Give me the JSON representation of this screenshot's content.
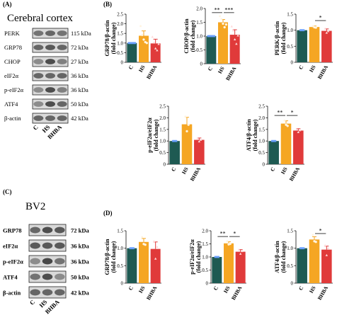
{
  "colors": {
    "C": "#1e5a52",
    "HS": "#f5a623",
    "BHBA": "#e03a3a",
    "axis": "#111111"
  },
  "panels": {
    "A": {
      "letter": "(A)",
      "title": "Cerebral cortex",
      "rows": [
        {
          "protein": "PERK",
          "size": "115 kDa",
          "tone": [
            0.55,
            0.6,
            0.55
          ]
        },
        {
          "protein": "GRP78",
          "size": "72 kDa",
          "tone": [
            0.6,
            0.65,
            0.6
          ]
        },
        {
          "protein": "CHOP",
          "size": "27 kDa",
          "tone": [
            0.45,
            0.7,
            0.5
          ]
        },
        {
          "protein": "eIF2α",
          "size": "36 kDa",
          "tone": [
            0.6,
            0.6,
            0.6
          ]
        },
        {
          "protein": "p-eIF2α",
          "size": "36 kDa",
          "tone": [
            0.45,
            0.7,
            0.5
          ]
        },
        {
          "protein": "ATF4",
          "size": "50 kDa",
          "tone": [
            0.45,
            0.7,
            0.6
          ]
        },
        {
          "protein": "β-actin",
          "size": "42 kDa",
          "tone": [
            0.6,
            0.6,
            0.6
          ]
        }
      ],
      "lanes": [
        "C",
        "HS",
        "BHBA"
      ]
    },
    "C": {
      "letter": "(C)",
      "title": "BV2",
      "rows": [
        {
          "protein": "GRP78",
          "size": "72 kDa",
          "tone": [
            0.6,
            0.7,
            0.65
          ]
        },
        {
          "protein": "eIF2α",
          "size": "36 kDa",
          "tone": [
            0.65,
            0.65,
            0.65
          ]
        },
        {
          "protein": "p-eIF2α",
          "size": "36 kDa",
          "tone": [
            0.45,
            0.72,
            0.55
          ]
        },
        {
          "protein": "ATF4",
          "size": "50 kDa",
          "tone": [
            0.55,
            0.7,
            0.45
          ]
        },
        {
          "protein": "β-actin",
          "size": "42 kDa",
          "tone": [
            0.6,
            0.6,
            0.6
          ]
        }
      ],
      "lanes": [
        "C",
        "HS",
        "BHBA"
      ]
    },
    "B_letter": "(B)",
    "D_letter": "(D)"
  },
  "chart_data": [
    {
      "id": "B1",
      "type": "bar",
      "categories": [
        "C",
        "HS",
        "BHBA"
      ],
      "values": [
        1.0,
        1.38,
        0.98
      ],
      "errors": [
        0.02,
        0.25,
        0.22
      ],
      "points": [
        [
          1,
          1,
          1,
          1,
          1
        ],
        [
          1.88,
          1.42,
          1.18,
          1.05,
          1.0
        ],
        [
          1.32,
          1.02,
          0.72,
          0.62,
          0.95
        ]
      ],
      "ylabel": [
        "GRP78/β-actin",
        "(fold change)"
      ],
      "ylim": [
        0,
        2.5
      ],
      "yticks": [
        0,
        0.5,
        1.0,
        1.5,
        2.0,
        2.5
      ],
      "sig": []
    },
    {
      "id": "B2",
      "type": "bar",
      "categories": [
        "C",
        "HS",
        "BHBA"
      ],
      "values": [
        1.0,
        1.5,
        1.05
      ],
      "errors": [
        0.02,
        0.1,
        0.18
      ],
      "points": [
        [
          1,
          1,
          1,
          1,
          1
        ],
        [
          1.72,
          1.62,
          1.45,
          1.32,
          1.42
        ],
        [
          1.35,
          1.2,
          0.88,
          0.72,
          1.02
        ]
      ],
      "ylabel": [
        "CHOP/β-actin",
        "(fold change)"
      ],
      "ylim": [
        0,
        2.0
      ],
      "yticks": [
        0,
        0.5,
        1.0,
        1.5,
        2.0
      ],
      "sig": [
        {
          "from": 0,
          "to": 1,
          "label": "**",
          "y": 1.85
        },
        {
          "from": 1,
          "to": 2,
          "label": "***",
          "y": 1.85
        }
      ]
    },
    {
      "id": "B3",
      "type": "bar",
      "categories": [
        "C",
        "HS",
        "BHBA"
      ],
      "values": [
        1.0,
        1.1,
        0.98
      ],
      "errors": [
        0.01,
        0.03,
        0.06
      ],
      "points": [
        [
          1,
          1,
          1
        ],
        [
          1.13,
          1.09,
          1.08
        ],
        [
          1.05,
          0.92,
          0.97
        ]
      ],
      "ylabel": [
        "PERK/β-actin",
        "(fold change)"
      ],
      "ylim": [
        0,
        1.5
      ],
      "yticks": [
        0,
        0.5,
        1.0,
        1.5
      ],
      "sig": [
        {
          "from": 1,
          "to": 2,
          "label": "*",
          "y": 1.3
        }
      ]
    },
    {
      "id": "B4",
      "type": "bar",
      "categories": [
        "C",
        "HS",
        "BHBA"
      ],
      "values": [
        1.0,
        1.72,
        1.05
      ],
      "errors": [
        0.01,
        0.3,
        0.08
      ],
      "points": [
        [
          1,
          1,
          1
        ],
        [
          2.05,
          1.42,
          1.7
        ],
        [
          1.12,
          0.98,
          1.05
        ]
      ],
      "ylabel": [
        "p-eIF2α/eIF2α",
        "(fold change)"
      ],
      "ylim": [
        0,
        2.5
      ],
      "yticks": [
        0,
        0.5,
        1.0,
        1.5,
        2.0,
        2.5
      ],
      "sig": []
    },
    {
      "id": "B5",
      "type": "bar",
      "categories": [
        "C",
        "HS",
        "BHBA"
      ],
      "values": [
        1.0,
        1.75,
        1.45
      ],
      "errors": [
        0.01,
        0.12,
        0.08
      ],
      "points": [
        [
          1,
          1,
          1
        ],
        [
          1.88,
          1.7,
          1.65
        ],
        [
          1.5,
          1.38,
          1.46
        ]
      ],
      "ylabel": [
        "ATF4/β-actin",
        "(fold change)"
      ],
      "ylim": [
        0,
        2.5
      ],
      "yticks": [
        0,
        0.5,
        1.0,
        1.5,
        2.0,
        2.5
      ],
      "sig": [
        {
          "from": 0,
          "to": 1,
          "label": "**",
          "y": 2.1
        },
        {
          "from": 1,
          "to": 2,
          "label": "*",
          "y": 2.1
        }
      ]
    },
    {
      "id": "D1",
      "type": "bar",
      "categories": [
        "C",
        "HS",
        "BHBA"
      ],
      "values": [
        1.0,
        1.18,
        0.98
      ],
      "errors": [
        0.01,
        0.1,
        0.2
      ],
      "points": [
        [
          1,
          1,
          1
        ],
        [
          1.32,
          1.12,
          1.1
        ],
        [
          1.2,
          0.7,
          1.04
        ]
      ],
      "ylabel": [
        "GRP78/β-actin",
        "(fold change)"
      ],
      "ylim": [
        0,
        1.5
      ],
      "yticks": [
        0,
        0.5,
        1.0,
        1.5
      ],
      "sig": []
    },
    {
      "id": "D2",
      "type": "bar",
      "categories": [
        "C",
        "HS",
        "BHBA"
      ],
      "values": [
        1.0,
        1.52,
        1.2
      ],
      "errors": [
        0.01,
        0.06,
        0.08
      ],
      "points": [
        [
          1,
          1,
          1
        ],
        [
          1.6,
          1.48,
          1.5
        ],
        [
          1.28,
          1.12,
          1.22
        ]
      ],
      "ylabel": [
        "p-eIF2α/eIF2α",
        "(fold change)"
      ],
      "ylim": [
        0,
        2.0
      ],
      "yticks": [
        0,
        0.5,
        1.0,
        1.5,
        2.0
      ],
      "sig": [
        {
          "from": 0,
          "to": 1,
          "label": "**",
          "y": 1.78
        },
        {
          "from": 1,
          "to": 2,
          "label": "*",
          "y": 1.78
        }
      ]
    },
    {
      "id": "D3",
      "type": "bar",
      "categories": [
        "C",
        "HS",
        "BHBA"
      ],
      "values": [
        1.0,
        1.25,
        0.96
      ],
      "errors": [
        0.01,
        0.08,
        0.1
      ],
      "points": [
        [
          1,
          1,
          1
        ],
        [
          1.38,
          1.2,
          1.18
        ],
        [
          1.08,
          0.8,
          1.0
        ]
      ],
      "ylabel": [
        "ATF4/β-actin",
        "(fold change)"
      ],
      "ylim": [
        0,
        1.5
      ],
      "yticks": [
        0,
        0.5,
        1.0,
        1.5
      ],
      "sig": [
        {
          "from": 1,
          "to": 2,
          "label": "*",
          "y": 1.42
        }
      ]
    }
  ]
}
